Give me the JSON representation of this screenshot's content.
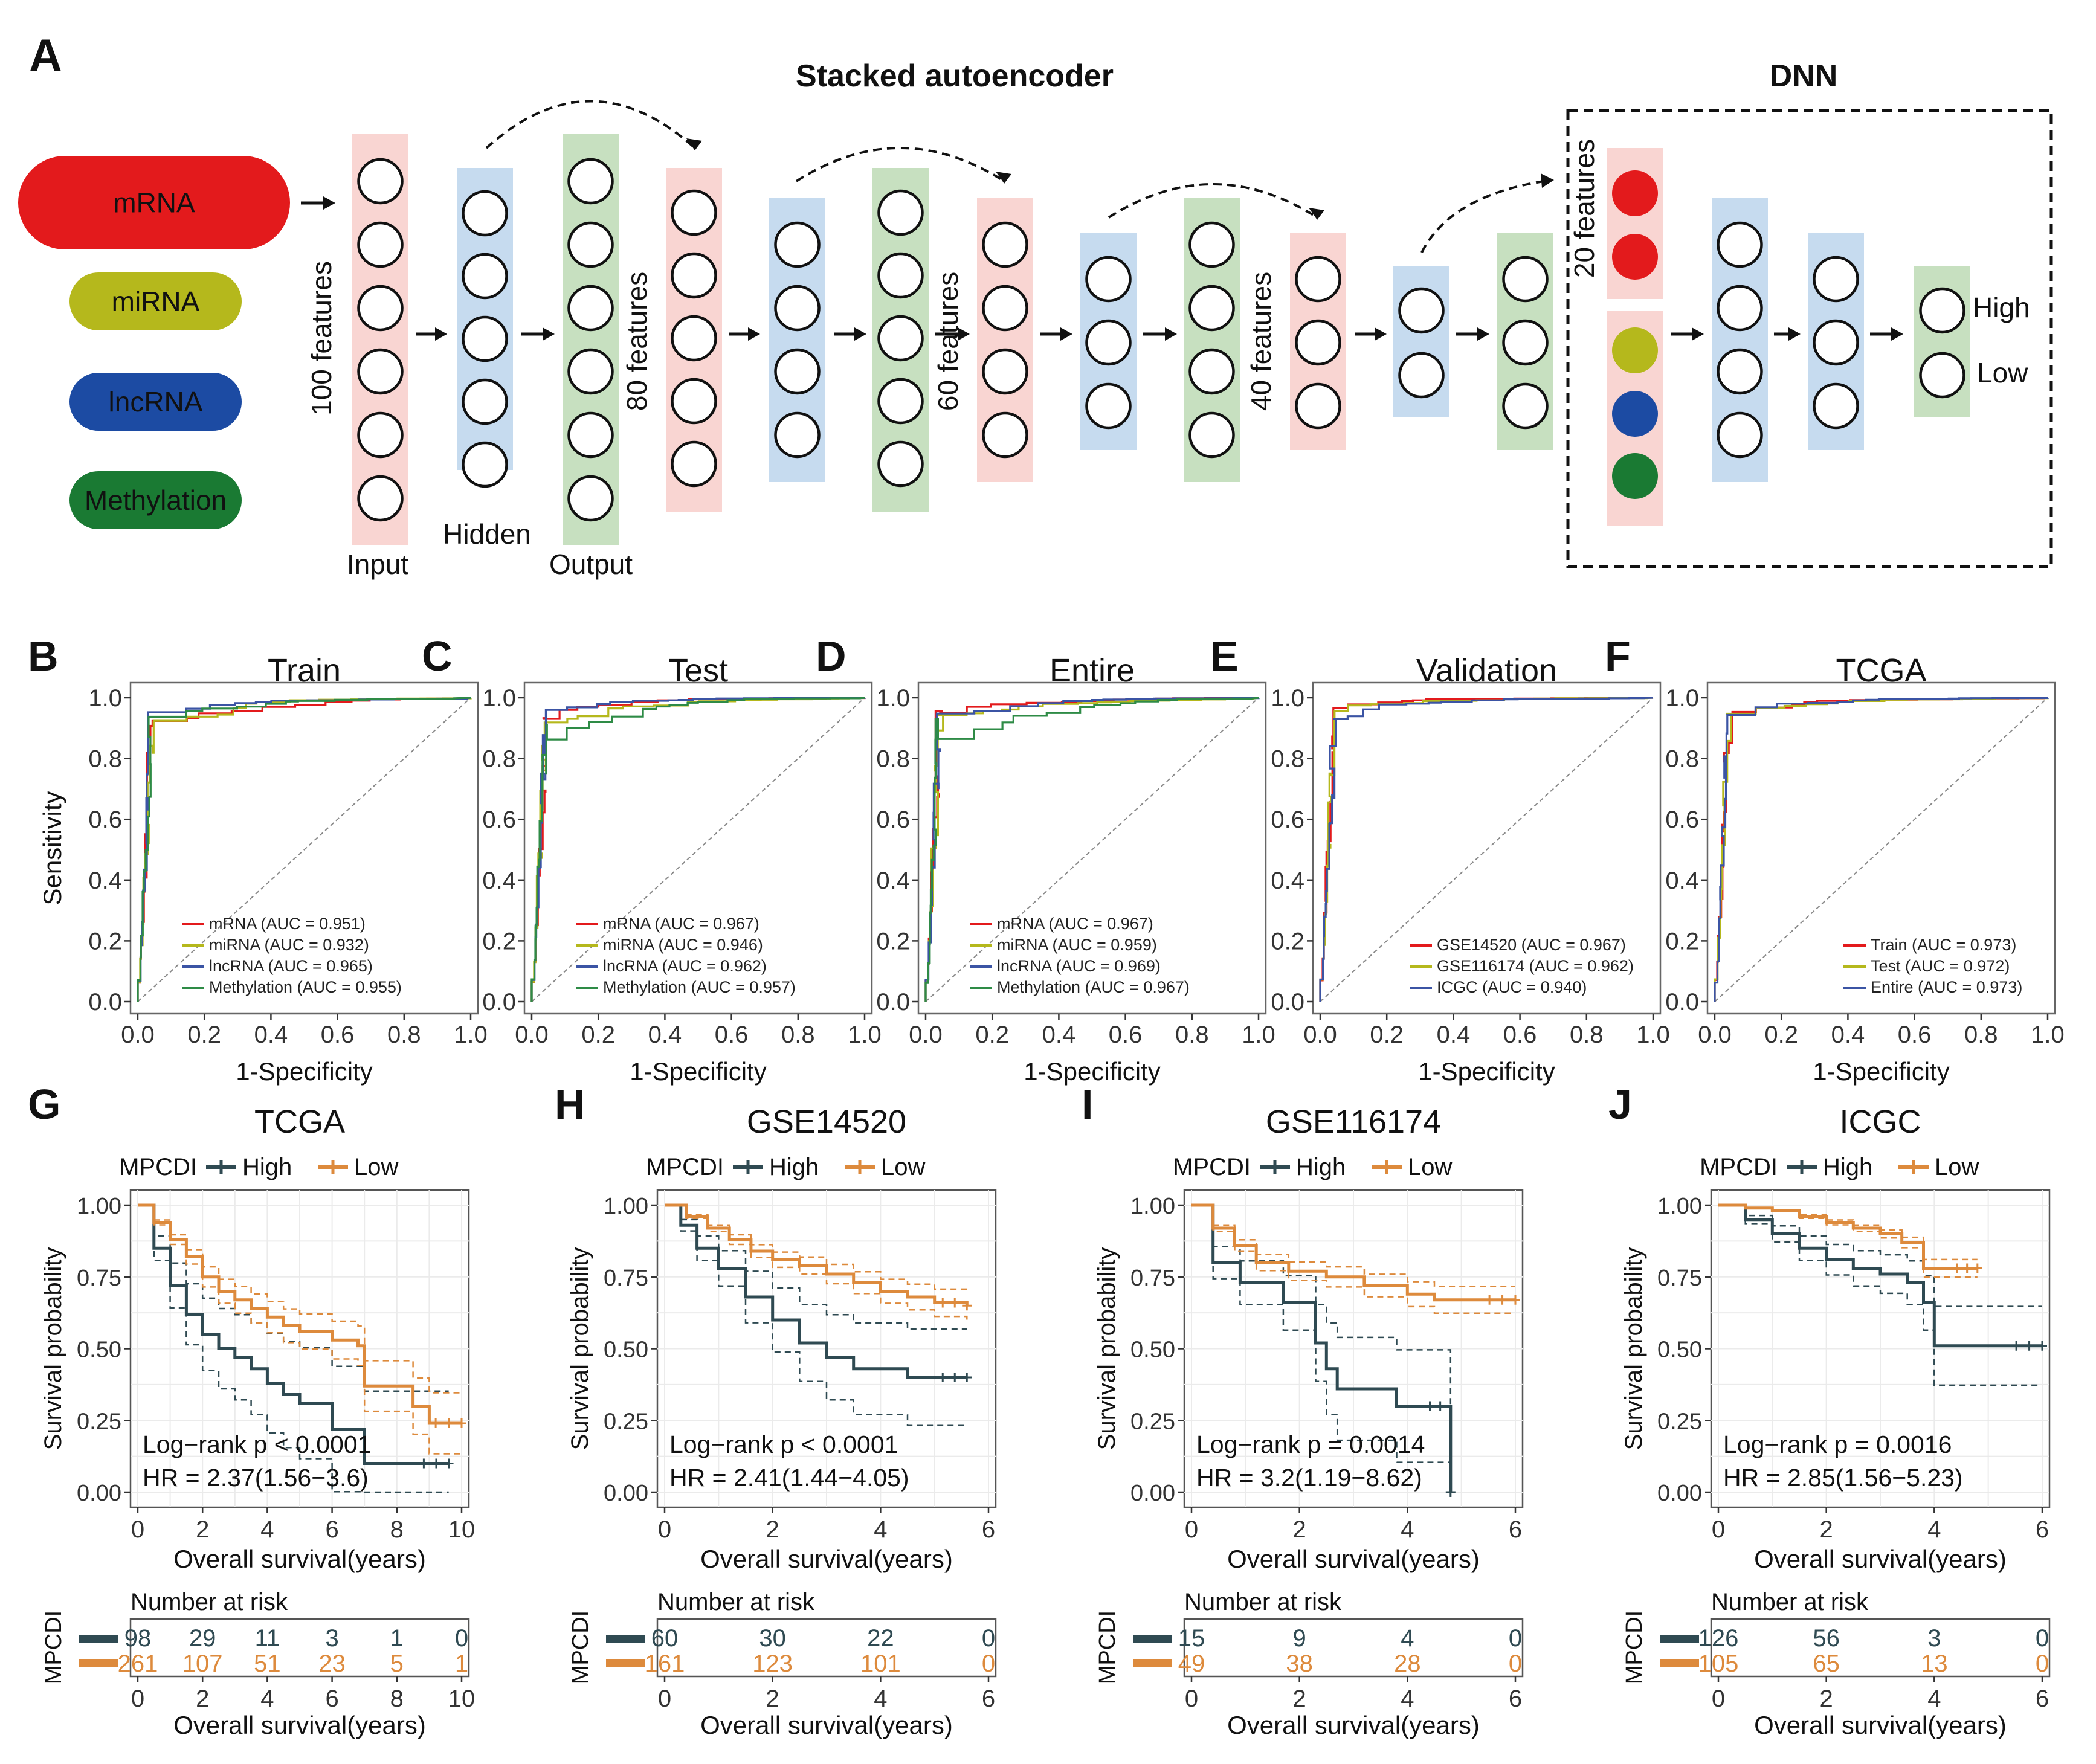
{
  "panel_letters": {
    "A": "A",
    "B": "B",
    "C": "C",
    "D": "D",
    "E": "E",
    "F": "F",
    "G": "G",
    "H": "H",
    "I": "I",
    "J": "J"
  },
  "panel_a": {
    "title_sae": "Stacked autoencoder",
    "title_dnn": "DNN",
    "omics": [
      {
        "label": "mRNA",
        "color": "#e31a1c"
      },
      {
        "label": "miRNA",
        "color": "#b5b81c"
      },
      {
        "label": "lncRNA",
        "color": "#1c4ba3"
      },
      {
        "label": "Methylation",
        "color": "#1a7a33"
      }
    ],
    "feature_labels": [
      "100 features",
      "80 features",
      "60 features",
      "40 features",
      "20 features"
    ],
    "layer_labels": {
      "input": "Input",
      "hidden": "Hidden",
      "output": "Output"
    },
    "dnn_outputs": [
      "High",
      "Low"
    ],
    "colors": {
      "pink": "#f9d5d2",
      "blue": "#c6dbef",
      "green": "#c7e0c0"
    }
  },
  "roc_axis": {
    "xlabel": "1-Specificity",
    "ylabel": "Sensitivity",
    "ticks": [
      "0.0",
      "0.2",
      "0.4",
      "0.6",
      "0.8",
      "1.0"
    ]
  },
  "roc_panels": [
    {
      "letter": "B",
      "title": "Train",
      "curve_seed": 1,
      "entries": [
        {
          "label": "mRNA (AUC = 0.951)",
          "color": "#e31a1c"
        },
        {
          "label": "miRNA (AUC = 0.932)",
          "color": "#b5b81c"
        },
        {
          "label": "lncRNA (AUC = 0.965)",
          "color": "#3b54a4"
        },
        {
          "label": "Methylation (AUC = 0.955)",
          "color": "#2e8b46"
        }
      ]
    },
    {
      "letter": "C",
      "title": "Test",
      "curve_seed": 2,
      "entries": [
        {
          "label": "mRNA (AUC = 0.967)",
          "color": "#e31a1c"
        },
        {
          "label": "miRNA (AUC = 0.946)",
          "color": "#b5b81c"
        },
        {
          "label": "lncRNA (AUC = 0.962)",
          "color": "#3b54a4"
        },
        {
          "label": "Methylation (AUC = 0.957)",
          "color": "#2e8b46"
        }
      ]
    },
    {
      "letter": "D",
      "title": "Entire",
      "curve_seed": 3,
      "entries": [
        {
          "label": "mRNA (AUC = 0.967)",
          "color": "#e31a1c"
        },
        {
          "label": "miRNA (AUC = 0.959)",
          "color": "#b5b81c"
        },
        {
          "label": "lncRNA (AUC = 0.969)",
          "color": "#3b54a4"
        },
        {
          "label": "Methylation (AUC = 0.967)",
          "color": "#2e8b46"
        }
      ]
    },
    {
      "letter": "E",
      "title": "Validation",
      "curve_seed": 4,
      "entries": [
        {
          "label": "GSE14520 (AUC = 0.967)",
          "color": "#e31a1c"
        },
        {
          "label": "GSE116174 (AUC = 0.962)",
          "color": "#b5b81c"
        },
        {
          "label": "ICGC (AUC = 0.940)",
          "color": "#3b54a4"
        }
      ]
    },
    {
      "letter": "F",
      "title": "TCGA",
      "curve_seed": 5,
      "entries": [
        {
          "label": "Train (AUC = 0.973)",
          "color": "#e31a1c"
        },
        {
          "label": "Test (AUC = 0.972)",
          "color": "#b5b81c"
        },
        {
          "label": "Entire (AUC = 0.973)",
          "color": "#3b54a4"
        }
      ]
    }
  ],
  "km_common": {
    "legend_title": "MPCDI",
    "high": "High",
    "low": "Low",
    "xlabel": "Overall survival(years)",
    "ylabel": "Survival probability",
    "risk_title": "Number at risk",
    "risk_ylabel": "MPCDI",
    "y_ticks": [
      "0.00",
      "0.25",
      "0.50",
      "0.75",
      "1.00"
    ],
    "high_color": "#2f4a52",
    "low_color": "#dd8a3c"
  },
  "km_panels": [
    {
      "letter": "G",
      "title": "TCGA",
      "xmax": 10,
      "x_ticks": [
        "0",
        "2",
        "4",
        "6",
        "8",
        "10"
      ],
      "logrank": "Log−rank p < 0.0001",
      "hr": "HR = 2.37(1.56−3.6)",
      "high": [
        [
          0,
          1.0
        ],
        [
          0.5,
          0.85
        ],
        [
          1,
          0.72
        ],
        [
          1.5,
          0.62
        ],
        [
          2,
          0.55
        ],
        [
          2.5,
          0.5
        ],
        [
          3,
          0.47
        ],
        [
          3.5,
          0.43
        ],
        [
          4,
          0.38
        ],
        [
          4.5,
          0.34
        ],
        [
          5,
          0.31
        ],
        [
          6,
          0.22
        ],
        [
          7,
          0.1
        ],
        [
          9.6,
          0.1
        ]
      ],
      "low": [
        [
          0,
          1.0
        ],
        [
          0.5,
          0.94
        ],
        [
          1,
          0.88
        ],
        [
          1.5,
          0.82
        ],
        [
          2,
          0.75
        ],
        [
          2.5,
          0.7
        ],
        [
          3,
          0.67
        ],
        [
          3.5,
          0.64
        ],
        [
          4,
          0.61
        ],
        [
          4.5,
          0.58
        ],
        [
          5,
          0.56
        ],
        [
          6,
          0.53
        ],
        [
          6.8,
          0.51
        ],
        [
          7,
          0.37
        ],
        [
          8,
          0.37
        ],
        [
          8.5,
          0.3
        ],
        [
          9,
          0.24
        ],
        [
          10,
          0.24
        ]
      ],
      "risk_high": [
        "98",
        "29",
        "11",
        "3",
        "1",
        "0"
      ],
      "risk_low": [
        "261",
        "107",
        "51",
        "23",
        "5",
        "1"
      ]
    },
    {
      "letter": "H",
      "title": "GSE14520",
      "xmax": 6,
      "x_ticks": [
        "0",
        "2",
        "4",
        "6"
      ],
      "logrank": "Log−rank p < 0.0001",
      "hr": "HR = 2.41(1.44−4.05)",
      "high": [
        [
          0,
          1.0
        ],
        [
          0.3,
          0.93
        ],
        [
          0.6,
          0.85
        ],
        [
          1,
          0.78
        ],
        [
          1.5,
          0.68
        ],
        [
          2,
          0.6
        ],
        [
          2.5,
          0.52
        ],
        [
          3,
          0.47
        ],
        [
          3.5,
          0.43
        ],
        [
          4,
          0.43
        ],
        [
          4.5,
          0.4
        ],
        [
          5.6,
          0.4
        ]
      ],
      "low": [
        [
          0,
          1.0
        ],
        [
          0.4,
          0.96
        ],
        [
          0.8,
          0.92
        ],
        [
          1.2,
          0.88
        ],
        [
          1.6,
          0.84
        ],
        [
          2,
          0.81
        ],
        [
          2.5,
          0.79
        ],
        [
          3,
          0.76
        ],
        [
          3.5,
          0.73
        ],
        [
          4,
          0.7
        ],
        [
          4.5,
          0.68
        ],
        [
          5,
          0.66
        ],
        [
          5.6,
          0.65
        ]
      ],
      "risk_high": [
        "60",
        "30",
        "22",
        "0"
      ],
      "risk_low": [
        "161",
        "123",
        "101",
        "0"
      ]
    },
    {
      "letter": "I",
      "title": "GSE116174",
      "xmax": 6,
      "x_ticks": [
        "0",
        "2",
        "4",
        "6"
      ],
      "logrank": "Log−rank p = 0.0014",
      "hr": "HR = 3.2(1.19−8.62)",
      "high": [
        [
          0,
          1.0
        ],
        [
          0.4,
          0.8
        ],
        [
          0.9,
          0.73
        ],
        [
          1.7,
          0.66
        ],
        [
          2.3,
          0.52
        ],
        [
          2.5,
          0.43
        ],
        [
          2.7,
          0.36
        ],
        [
          3.8,
          0.3
        ],
        [
          4.8,
          0.3
        ],
        [
          4.8,
          0.0
        ]
      ],
      "low": [
        [
          0,
          1.0
        ],
        [
          0.4,
          0.92
        ],
        [
          0.8,
          0.86
        ],
        [
          1.2,
          0.8
        ],
        [
          1.8,
          0.77
        ],
        [
          2.5,
          0.75
        ],
        [
          3.2,
          0.72
        ],
        [
          4,
          0.69
        ],
        [
          4.5,
          0.67
        ],
        [
          6,
          0.67
        ]
      ],
      "risk_high": [
        "15",
        "9",
        "4",
        "0"
      ],
      "risk_low": [
        "49",
        "38",
        "28",
        "0"
      ]
    },
    {
      "letter": "J",
      "title": "ICGC",
      "xmax": 6,
      "x_ticks": [
        "0",
        "2",
        "4",
        "6"
      ],
      "logrank": "Log−rank p = 0.0016",
      "hr": "HR = 2.85(1.56−5.23)",
      "high": [
        [
          0,
          1.0
        ],
        [
          0.5,
          0.95
        ],
        [
          1,
          0.9
        ],
        [
          1.5,
          0.85
        ],
        [
          2,
          0.81
        ],
        [
          2.5,
          0.78
        ],
        [
          3,
          0.76
        ],
        [
          3.5,
          0.73
        ],
        [
          3.8,
          0.66
        ],
        [
          4,
          0.51
        ],
        [
          6,
          0.51
        ]
      ],
      "low": [
        [
          0,
          1.0
        ],
        [
          0.5,
          0.99
        ],
        [
          1,
          0.98
        ],
        [
          1.5,
          0.96
        ],
        [
          2,
          0.94
        ],
        [
          2.5,
          0.92
        ],
        [
          3,
          0.9
        ],
        [
          3.4,
          0.87
        ],
        [
          3.8,
          0.78
        ],
        [
          4.8,
          0.78
        ]
      ],
      "risk_high": [
        "126",
        "56",
        "3",
        "0"
      ],
      "risk_low": [
        "105",
        "65",
        "13",
        "0"
      ]
    }
  ]
}
